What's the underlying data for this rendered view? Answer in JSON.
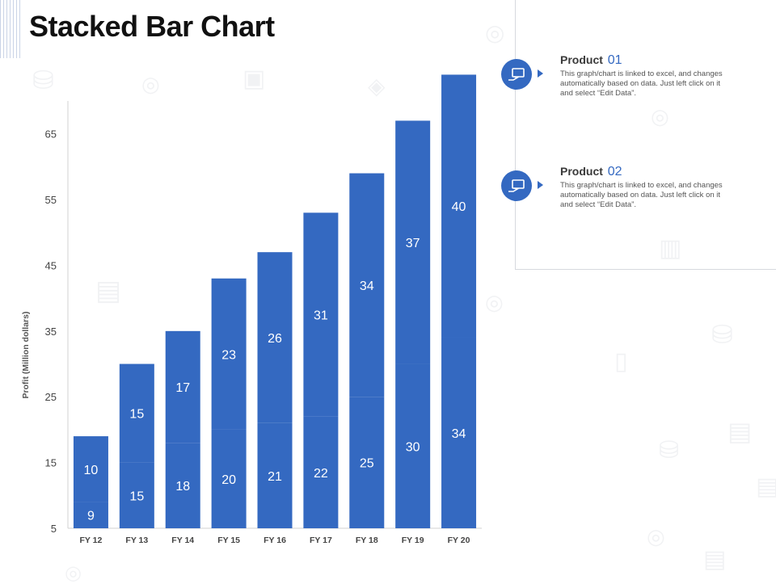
{
  "slide": {
    "title": "Stacked Bar Chart"
  },
  "legend": [
    {
      "name": "Product ",
      "num": "01",
      "icon": "hand-document-icon",
      "desc": "This graph/chart is linked to excel, and changes automatically based on data. Just left click on it and select “Edit Data”."
    },
    {
      "name": "Product ",
      "num": "02",
      "icon": "hand-document-icon",
      "desc": "This graph/chart is linked to excel, and changes automatically based on data. Just left click on it and select “Edit Data”."
    }
  ],
  "chart_data": {
    "type": "bar",
    "stacked": true,
    "title": "",
    "xlabel": "",
    "ylabel": "Profit  (Million dollars)",
    "ylim": [
      5,
      70
    ],
    "yticks": [
      5,
      15,
      25,
      35,
      45,
      55,
      65
    ],
    "categories": [
      "FY 12",
      "FY 13",
      "FY 14",
      "FY 15",
      "FY 16",
      "FY 17",
      "FY 18",
      "FY 19",
      "FY 20"
    ],
    "series": [
      {
        "name": "Product 01",
        "values": [
          9,
          15,
          18,
          20,
          21,
          22,
          25,
          30,
          34
        ]
      },
      {
        "name": "Product 02",
        "values": [
          10,
          15,
          17,
          23,
          26,
          31,
          34,
          37,
          40
        ]
      }
    ],
    "bar_color": "#3469c1",
    "label_color": "#ffffff",
    "grid": false
  }
}
